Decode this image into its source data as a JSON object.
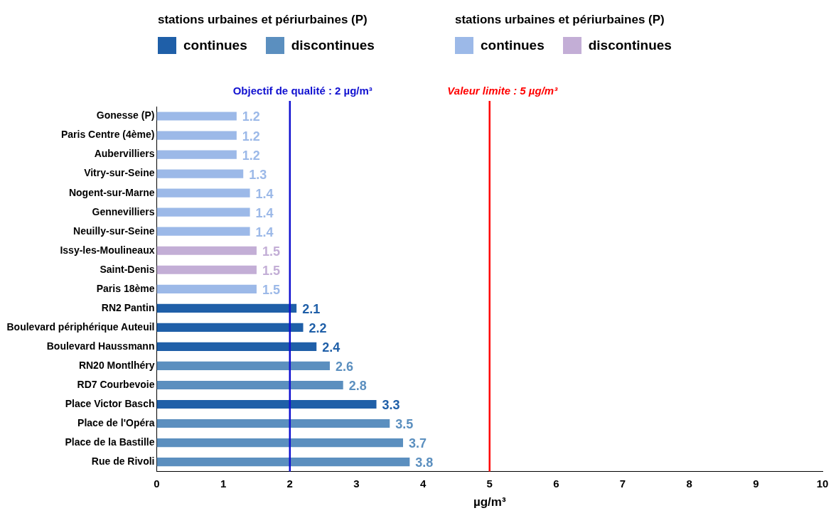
{
  "chart_data": {
    "type": "bar",
    "orientation": "horizontal",
    "stacked": true,
    "categories": [
      "Gonesse (P)",
      "Paris Centre (4ème)",
      "Aubervilliers",
      "Vitry-sur-Seine",
      "Nogent-sur-Marne",
      "Gennevilliers",
      "Neuilly-sur-Seine",
      "Issy-les-Moulineaux",
      "Saint-Denis",
      "Paris 18ème",
      "RN2 Pantin",
      "Boulevard périphérique Auteuil",
      "Boulevard Haussmann",
      "RN20 Montlhéry",
      "RD7 Courbevoie",
      "Place Victor Basch",
      "Place de l'Opéra",
      "Place de la Bastille",
      "Rue de Rivoli"
    ],
    "series": [
      {
        "name": "continues",
        "color": "#1f5fa8",
        "values": [
          null,
          null,
          null,
          null,
          null,
          null,
          null,
          null,
          null,
          null,
          2.1,
          2.2,
          2.4,
          null,
          null,
          3.3,
          null,
          null,
          null
        ]
      },
      {
        "name": "discontinues",
        "color": "#5b8fbf",
        "values": [
          null,
          null,
          null,
          null,
          null,
          null,
          null,
          null,
          null,
          null,
          null,
          null,
          null,
          2.6,
          2.8,
          null,
          3.5,
          3.7,
          3.8
        ]
      },
      {
        "name": "continues",
        "color": "#9cb9e8",
        "values": [
          1.2,
          1.2,
          1.2,
          1.3,
          1.4,
          1.4,
          1.4,
          null,
          null,
          1.5,
          null,
          null,
          null,
          null,
          null,
          null,
          null,
          null,
          null
        ]
      },
      {
        "name": "discontinues",
        "color": "#c3aed6",
        "values": [
          null,
          null,
          null,
          null,
          null,
          null,
          null,
          1.5,
          1.5,
          null,
          null,
          null,
          null,
          null,
          null,
          null,
          null,
          null,
          null
        ]
      }
    ],
    "xlabel": "µg/m³",
    "xlim": [
      0,
      10
    ],
    "xticks": [
      0,
      1,
      2,
      3,
      4,
      5,
      6,
      7,
      8,
      9,
      10
    ],
    "ref_lines": [
      {
        "axis": "x",
        "value": 2,
        "label": "Objectif de qualité : 2 µg/m³",
        "color": "#1010d0"
      },
      {
        "axis": "x",
        "value": 5,
        "label": "Valeur limite : 5 µg/m³",
        "color": "#ff0000"
      }
    ],
    "annotations": [
      "stations urbaines et périurbaines (P)",
      "stations urbaines et périurbaines (P)"
    ],
    "data_labels": true,
    "legend": "top"
  }
}
